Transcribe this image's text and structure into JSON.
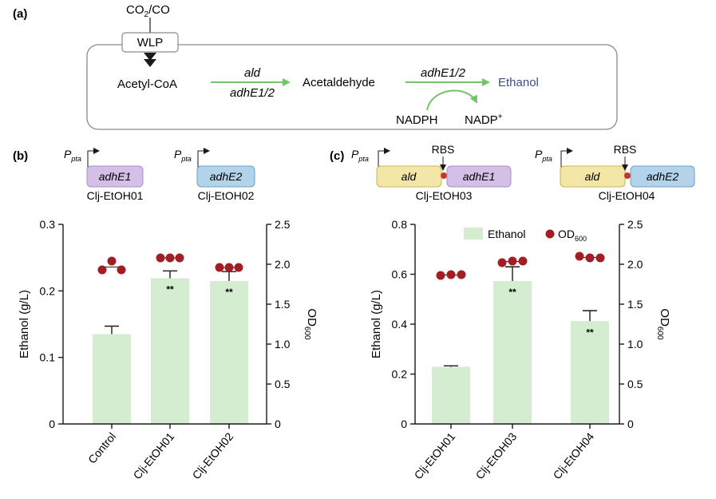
{
  "colors": {
    "bar": "#d4eccf",
    "dot": "#a31d24",
    "arrow_green": "#74c36a",
    "ethanol_text": "#3c4f8c",
    "gene_purple": "#d4bfe6",
    "gene_purple_stroke": "#a88fc6",
    "gene_blue": "#b2d3ea",
    "gene_blue_stroke": "#6f9fc4",
    "gene_yellow": "#f3e6a6",
    "gene_yellow_stroke": "#c9b25a",
    "rbs": "#c0392b",
    "axis": "#1a1a1a"
  },
  "panel_a": {
    "label": "(a)",
    "substrate": "CO",
    "substrate_sub": "2",
    "substrate_suffix": "/CO",
    "wlp": "WLP",
    "acetyl_coa": "Acetyl-CoA",
    "enzyme1_top": "ald",
    "enzyme1_bottom": "adhE1/2",
    "acetaldehyde": "Acetaldehyde",
    "enzyme2": "adhE1/2",
    "ethanol": "Ethanol",
    "cofactor_in": "NADPH",
    "cofactor_out": "NADP",
    "cofactor_out_sup": "+"
  },
  "panel_b": {
    "label": "(b)",
    "promoter": "P",
    "promoter_sub": "pta",
    "constructs": [
      {
        "gene": "adhE1",
        "strain": "Clj-EtOH01"
      },
      {
        "gene": "adhE2",
        "strain": "Clj-EtOH02"
      }
    ]
  },
  "panel_c": {
    "label": "(c)",
    "promoter": "P",
    "promoter_sub": "pta",
    "rbs": "RBS",
    "constructs": [
      {
        "gene1": "ald",
        "gene2": "adhE1",
        "strain": "Clj-EtOH03"
      },
      {
        "gene1": "ald",
        "gene2": "adhE2",
        "strain": "Clj-EtOH04"
      }
    ]
  },
  "chart_data": [
    {
      "type": "bar",
      "panel": "b",
      "categories": [
        "Control",
        "Clj-EtOH01",
        "Clj-EtOH02"
      ],
      "series": [
        {
          "name": "Ethanol",
          "axis": "left",
          "values": [
            0.135,
            0.219,
            0.215
          ],
          "errors": [
            0.012,
            0.011,
            0.014
          ],
          "significance": [
            "",
            "**",
            "**"
          ]
        },
        {
          "name": "OD600",
          "axis": "right",
          "type": "scatter",
          "points": [
            [
              1.93,
              2.04,
              1.93
            ],
            [
              2.08,
              2.08,
              2.08
            ],
            [
              1.96,
              1.96,
              1.96
            ]
          ]
        }
      ],
      "ylabel": "Ethanol (g/L)",
      "y2label": "OD",
      "y2label_sub": "600",
      "ylim": [
        0,
        0.3
      ],
      "yticks": [
        "0",
        "0.1",
        "0.2",
        "0.3"
      ],
      "y2lim": [
        0,
        2.5
      ],
      "y2ticks": [
        "0",
        "0.5",
        "1.0",
        "1.5",
        "2.0",
        "2.5"
      ],
      "legend": "none"
    },
    {
      "type": "bar",
      "panel": "c",
      "categories": [
        "Clj-EtOH01",
        "Clj-EtOH03",
        "Clj-EtOH04"
      ],
      "series": [
        {
          "name": "Ethanol",
          "axis": "left",
          "values": [
            0.229,
            0.573,
            0.412
          ],
          "errors": [
            0.004,
            0.057,
            0.042
          ],
          "significance": [
            "",
            "**",
            "**"
          ]
        },
        {
          "name": "OD600",
          "axis": "right",
          "type": "scatter",
          "points": [
            [
              1.86,
              1.87,
              1.87
            ],
            [
              2.02,
              2.04,
              2.04
            ],
            [
              2.1,
              2.08,
              2.08
            ]
          ]
        }
      ],
      "ylabel": "Ethanol (g/L)",
      "y2label": "OD",
      "y2label_sub": "600",
      "ylim": [
        0,
        0.8
      ],
      "yticks": [
        "0",
        "0.2",
        "0.4",
        "0.6",
        "0.8"
      ],
      "y2lim": [
        0,
        2.5
      ],
      "y2ticks": [
        "0",
        "0.5",
        "1.0",
        "1.5",
        "2.0",
        "2.5"
      ],
      "legend_items": [
        "Ethanol",
        "OD"
      ],
      "legend_sub": "600",
      "legend": "top"
    }
  ]
}
